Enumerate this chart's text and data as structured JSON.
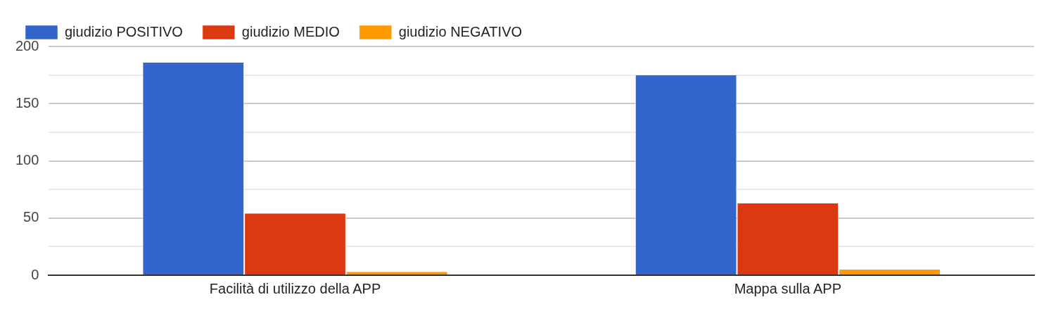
{
  "chart_data": {
    "type": "bar",
    "categories": [
      "Facilità di utilizzo della APP",
      "Mappa sulla APP"
    ],
    "series": [
      {
        "name": "giudizio POSITIVO",
        "color": "#3366cc",
        "values": [
          186,
          175
        ]
      },
      {
        "name": "giudizio MEDIO",
        "color": "#dc3912",
        "values": [
          54,
          63
        ]
      },
      {
        "name": "giudizio NEGATIVO",
        "color": "#ff9900",
        "values": [
          3,
          5
        ]
      }
    ],
    "ylim": [
      0,
      200
    ],
    "yticks": [
      0,
      {
        "value": 25,
        "label": null
      },
      50,
      {
        "value": 75,
        "label": null
      },
      100,
      {
        "value": 125,
        "label": null
      },
      150,
      {
        "value": 175,
        "label": null
      },
      200
    ],
    "grid": "y",
    "legend": "top left"
  }
}
